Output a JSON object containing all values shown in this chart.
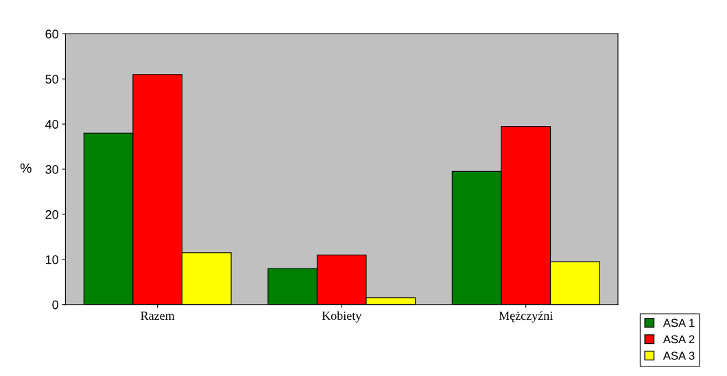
{
  "chart_data": {
    "type": "bar",
    "ylabel": "%",
    "categories": [
      "Razem",
      "Kobiety",
      "Mężczyźni"
    ],
    "series": [
      {
        "name": "ASA 1",
        "color": "#008000",
        "values": [
          38,
          8,
          29.5
        ]
      },
      {
        "name": "ASA 2",
        "color": "#ff0000",
        "values": [
          51,
          11,
          39.5
        ]
      },
      {
        "name": "ASA 3",
        "color": "#ffff00",
        "values": [
          11.5,
          1.5,
          9.5
        ]
      }
    ],
    "ylim": [
      0,
      60
    ],
    "yticks": [
      0,
      10,
      20,
      30,
      40,
      50,
      60
    ],
    "grid": false,
    "legend": "bottom right"
  }
}
